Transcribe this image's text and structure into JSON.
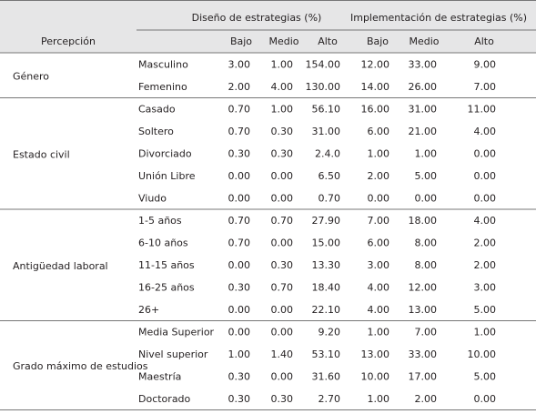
{
  "header": {
    "group_headers": [
      "Diseño de estrategias (%)",
      "Implementación de estrategias (%)"
    ],
    "columns": [
      "Percepción",
      "Bajo",
      "Medio",
      "Alto",
      "Bajo",
      "Medio",
      "Alto"
    ]
  },
  "groups": [
    {
      "label": "Género",
      "rows": [
        {
          "name": "Masculino",
          "values": [
            "3.00",
            "1.00",
            "154.00",
            "12.00",
            "33.00",
            "9.00"
          ]
        },
        {
          "name": "Femenino",
          "values": [
            "2.00",
            "4.00",
            "130.00",
            "14.00",
            "26.00",
            "7.00"
          ]
        }
      ]
    },
    {
      "label": "Estado civil",
      "rows": [
        {
          "name": "Casado",
          "values": [
            "0.70",
            "1.00",
            "56.10",
            "16.00",
            "31.00",
            "11.00"
          ]
        },
        {
          "name": "Soltero",
          "values": [
            "0.70",
            "0.30",
            "31.00",
            "6.00",
            "21.00",
            "4.00"
          ]
        },
        {
          "name": "Divorciado",
          "values": [
            "0.30",
            "0.30",
            "2.4.0",
            "1.00",
            "1.00",
            "0.00"
          ]
        },
        {
          "name": "Unión Libre",
          "values": [
            "0.00",
            "0.00",
            "6.50",
            "2.00",
            "5.00",
            "0.00"
          ]
        },
        {
          "name": "Viudo",
          "values": [
            "0.00",
            "0.00",
            "0.70",
            "0.00",
            "0.00",
            "0.00"
          ]
        }
      ]
    },
    {
      "label": "Antigüedad laboral",
      "rows": [
        {
          "name": "1-5 años",
          "values": [
            "0.70",
            "0.70",
            "27.90",
            "7.00",
            "18.00",
            "4.00"
          ]
        },
        {
          "name": "6-10 años",
          "values": [
            "0.70",
            "0.00",
            "15.00",
            "6.00",
            "8.00",
            "2.00"
          ]
        },
        {
          "name": "11-15 años",
          "values": [
            "0.00",
            "0.30",
            "13.30",
            "3.00",
            "8.00",
            "2.00"
          ]
        },
        {
          "name": "16-25 años",
          "values": [
            "0.30",
            "0.70",
            "18.40",
            "4.00",
            "12.00",
            "3.00"
          ]
        },
        {
          "name": "26+",
          "values": [
            "0.00",
            "0.00",
            "22.10",
            "4.00",
            "13.00",
            "5.00"
          ]
        }
      ]
    },
    {
      "label": "Grado máximo de estudios",
      "rows": [
        {
          "name": "Media Superior",
          "values": [
            "0.00",
            "0.00",
            "9.20",
            "1.00",
            "7.00",
            "1.00"
          ]
        },
        {
          "name": "Nivel superior",
          "values": [
            "1.00",
            "1.40",
            "53.10",
            "13.00",
            "33.00",
            "10.00"
          ]
        },
        {
          "name": "Maestría",
          "values": [
            "0.30",
            "0.00",
            "31.60",
            "10.00",
            "17.00",
            "5.00"
          ]
        },
        {
          "name": "Doctorado",
          "values": [
            "0.30",
            "0.30",
            "2.70",
            "1.00",
            "2.00",
            "0.00"
          ]
        }
      ]
    }
  ]
}
